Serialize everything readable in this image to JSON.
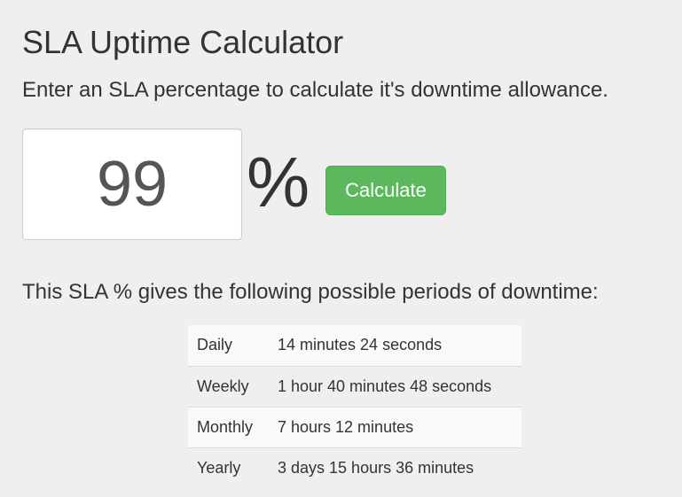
{
  "header": {
    "title": "SLA Uptime Calculator",
    "subtitle": "Enter an SLA percentage to calculate it's downtime allowance."
  },
  "form": {
    "sla_value": "99",
    "percent_symbol": "%",
    "calculate_label": "Calculate",
    "button_color": "#5cb85c"
  },
  "results": {
    "heading": "This SLA % gives the following possible periods of downtime:",
    "rows": [
      {
        "period": "Daily",
        "downtime": "14 minutes 24 seconds"
      },
      {
        "period": "Weekly",
        "downtime": "1 hour 40 minutes 48 seconds"
      },
      {
        "period": "Monthly",
        "downtime": "7 hours 12 minutes"
      },
      {
        "period": "Yearly",
        "downtime": "3 days 15 hours 36 minutes"
      }
    ]
  }
}
